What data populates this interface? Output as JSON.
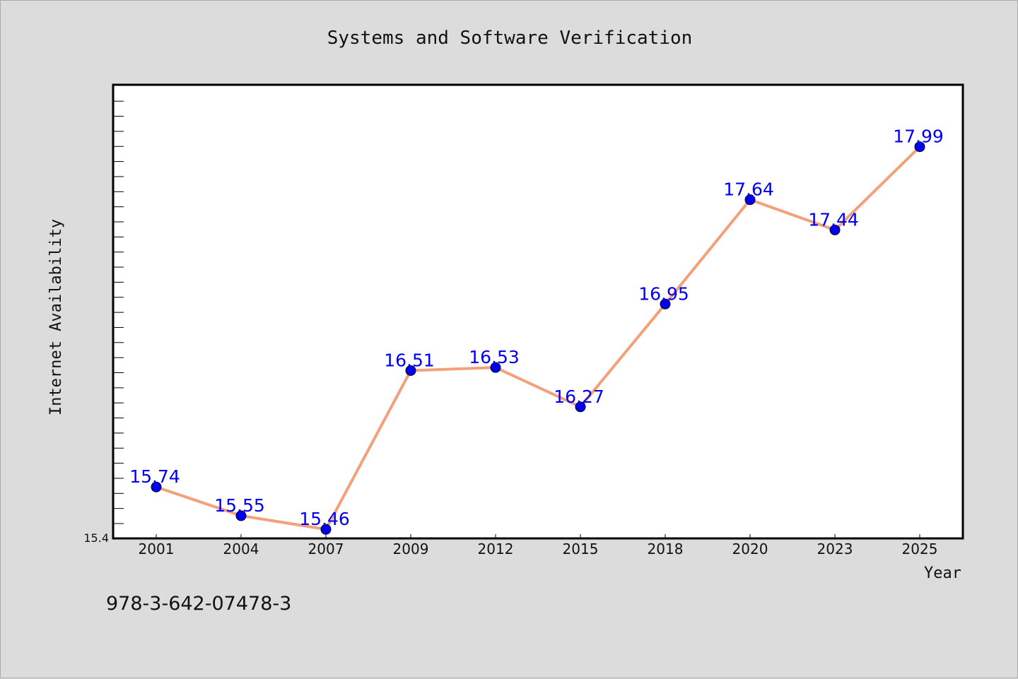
{
  "footer_text": "978-3-642-07478-3",
  "colors": {
    "background": "#dcdcdc",
    "plot_background": "#ffffff",
    "line": "#f4a07a",
    "marker": "#0000ee",
    "data_label": "#0000ee"
  },
  "chart_data": {
    "type": "line",
    "title": "Systems and Software Verification",
    "xlabel": "Year",
    "ylabel": "Internet Availability",
    "categories": [
      "2001",
      "2004",
      "2007",
      "2009",
      "2012",
      "2015",
      "2018",
      "2020",
      "2023",
      "2025"
    ],
    "series": [
      {
        "values": [
          15.74,
          15.55,
          15.46,
          16.51,
          16.53,
          16.27,
          16.95,
          17.64,
          17.44,
          17.99
        ]
      }
    ],
    "data_labels": [
      "15.74",
      "15.55",
      "15.46",
      "16.51",
      "16.53",
      "16.27",
      "16.95",
      "17.64",
      "17.44",
      "17.99"
    ],
    "y_tick_labels": [
      "15.4"
    ],
    "ylim": [
      15.4,
      18.4
    ],
    "grid": false,
    "legend": "none"
  }
}
